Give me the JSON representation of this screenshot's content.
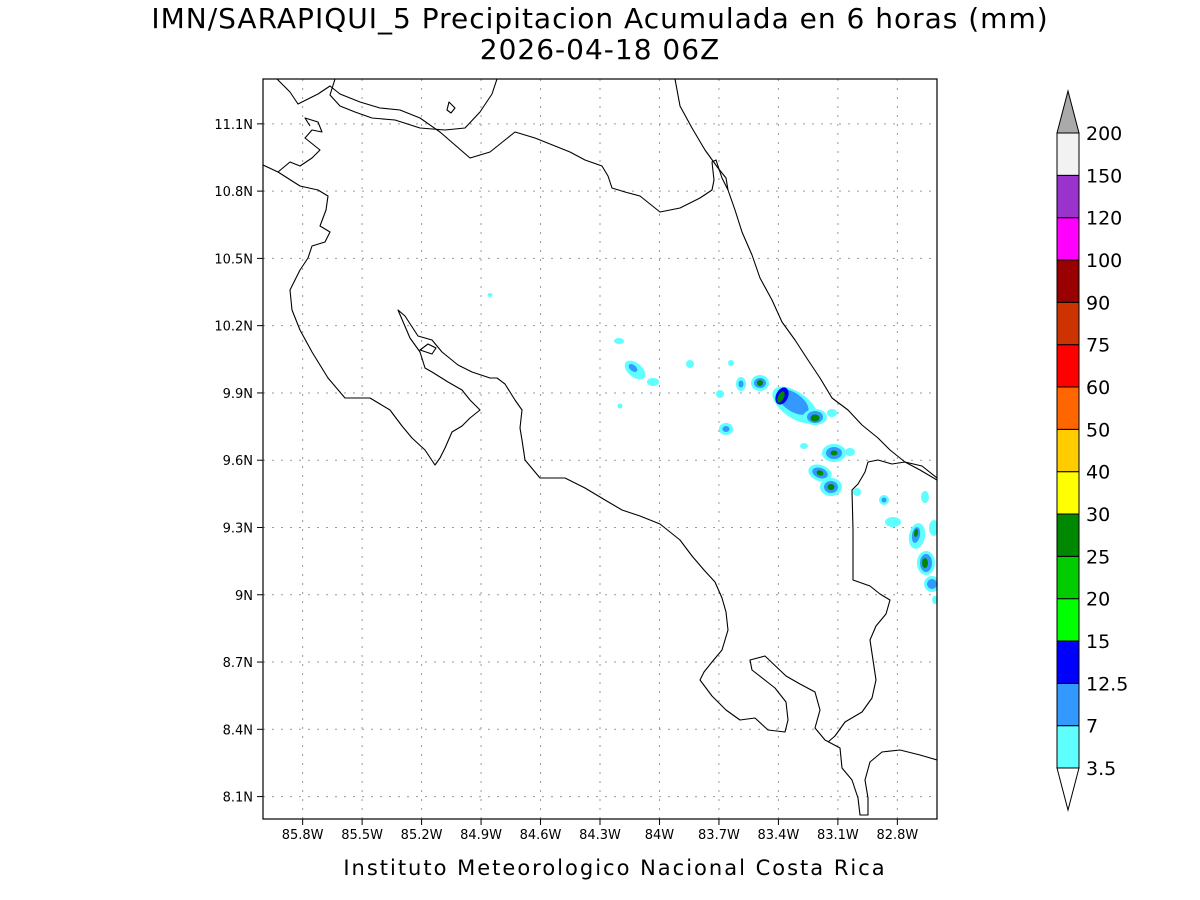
{
  "title": {
    "line1": "IMN/SARAPIQUI_5 Precipitacion Acumulada en 6 horas (mm)",
    "line2": "2026-04-18 06Z"
  },
  "map": {
    "lon_range": [
      -86.0,
      -82.6
    ],
    "lat_range": [
      8.0,
      11.3
    ],
    "lon_ticks": [
      "85.8W",
      "85.5W",
      "85.2W",
      "84.9W",
      "84.6W",
      "84.3W",
      "84W",
      "83.7W",
      "83.4W",
      "83.1W",
      "82.8W"
    ],
    "lon_tick_values": [
      -85.8,
      -85.5,
      -85.2,
      -84.9,
      -84.6,
      -84.3,
      -84.0,
      -83.7,
      -83.4,
      -83.1,
      -82.8
    ],
    "lat_ticks": [
      "11.1N",
      "10.8N",
      "10.5N",
      "10.2N",
      "9.9N",
      "9.6N",
      "9.3N",
      "9N",
      "8.7N",
      "8.4N",
      "8.1N"
    ],
    "lat_tick_values": [
      11.1,
      10.8,
      10.5,
      10.2,
      9.9,
      9.6,
      9.3,
      9.0,
      8.7,
      8.4,
      8.1
    ],
    "grid": true,
    "field_colors": {
      "c3_5": "#5fffff",
      "c7": "#3399ff",
      "c12_5": "#0000ee",
      "c15": "#00ff00",
      "c20": "#00cc00",
      "c25": "#008800"
    }
  },
  "colorbar": {
    "labels": [
      "3.5",
      "7",
      "12.5",
      "15",
      "20",
      "25",
      "30",
      "40",
      "50",
      "60",
      "75",
      "90",
      "100",
      "120",
      "150",
      "200"
    ],
    "colors": [
      "#ffffff",
      "#5fffff",
      "#3399ff",
      "#0000ff",
      "#00ff00",
      "#00cc00",
      "#008800",
      "#ffff00",
      "#ffcc00",
      "#ff6600",
      "#ff0000",
      "#cc3300",
      "#990000",
      "#ff00ff",
      "#9933cc",
      "#f2f2f2",
      "#aaaaaa"
    ]
  },
  "footer": "Instituto Meteorologico Nacional Costa Rica"
}
